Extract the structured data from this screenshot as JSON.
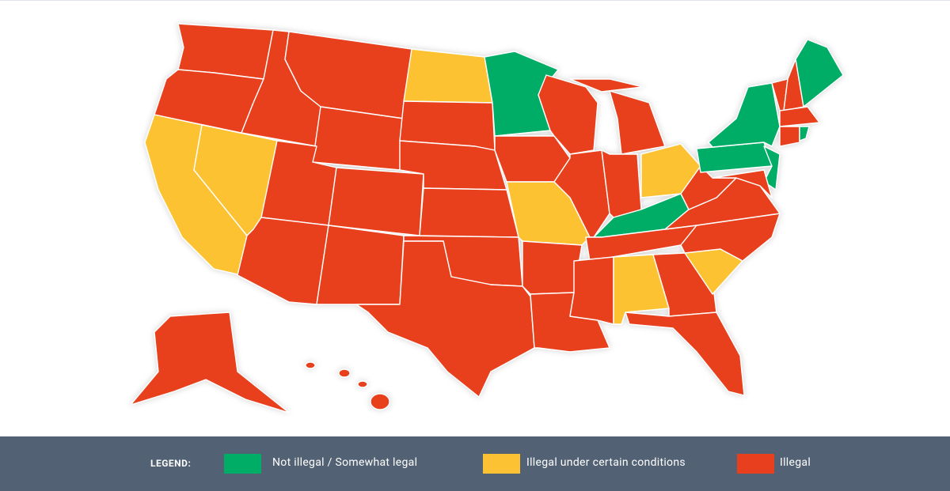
{
  "legend": {
    "label": "LEGEND:",
    "items": [
      {
        "label": "Not illegal / Somewhat legal",
        "color": "#00ad66"
      },
      {
        "label": "Illegal under certain conditions",
        "color": "#fdc233"
      },
      {
        "label": "Illegal",
        "color": "#e8401f"
      }
    ]
  }
}
